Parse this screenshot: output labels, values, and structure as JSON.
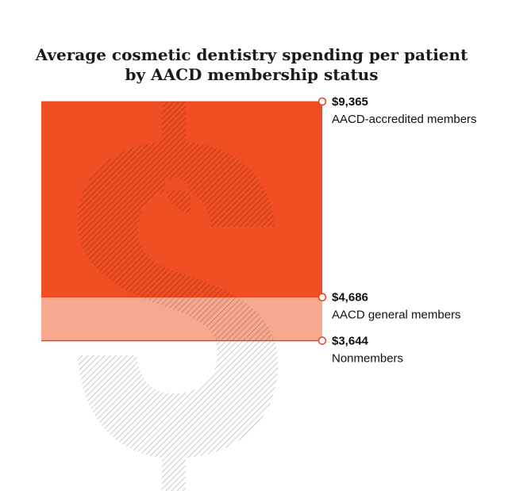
{
  "chart_data": {
    "type": "area",
    "title_lines": [
      "Average cosmetic dentistry spending per patient",
      "by AACD membership status"
    ],
    "categories": [
      "AACD-accredited members",
      "AACD general members",
      "Nonmembers"
    ],
    "values": [
      9365,
      4686,
      3644
    ],
    "value_labels": [
      "$9,365",
      "$4,686",
      "$3,644"
    ],
    "ylim": [
      0,
      9365
    ],
    "legend": "none",
    "grid": false,
    "colors": {
      "accredited": "#f04e23",
      "general": "#f7a990",
      "nonmember": "#ffffff",
      "marker_stroke": "#e8401c",
      "dollar_sign": "#bdbdbd",
      "dollar_sign_icon": "dollar-sign-icon"
    }
  }
}
